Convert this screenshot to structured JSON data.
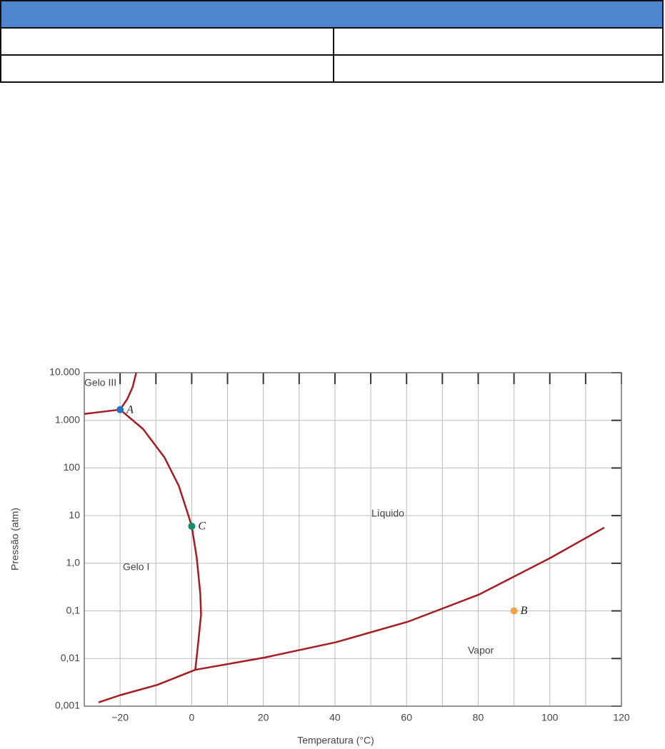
{
  "chart_data": {
    "type": "line",
    "x_label": "Temperatura (°C)",
    "y_label": "Pressão (atm)",
    "xlim": [
      -30,
      120
    ],
    "xticks": [
      {
        "value": -20,
        "label": "−20"
      },
      0,
      20,
      40,
      60,
      80,
      100,
      120
    ],
    "xminorticks": [
      -10,
      10,
      30,
      50,
      70,
      90,
      110
    ],
    "ylim": [
      0.001,
      10000
    ],
    "ylog": true,
    "yticks": [
      {
        "value": 0.001,
        "label": "0,001"
      },
      {
        "value": 0.01,
        "label": "0,01"
      },
      {
        "value": 0.1,
        "label": "0,1"
      },
      {
        "value": 1,
        "label": "1,0"
      },
      10,
      100,
      {
        "value": 1000,
        "label": "1.000"
      },
      {
        "value": 10000,
        "label": "10.000"
      }
    ],
    "grid": true,
    "annotations": [
      "Gelo III",
      "Gelo I",
      "Líquido",
      "Vapor"
    ],
    "series": [
      {
        "color": "#a51c24",
        "x": [
          -30,
          -20
        ],
        "values": [
          1365,
          1680
        ]
      },
      {
        "color": "#a51c24",
        "x": [
          -20,
          -18,
          -16.5,
          -15.5
        ],
        "values": [
          1680,
          2800,
          5000,
          10000
        ]
      },
      {
        "color": "#a51c24",
        "x": [
          -20,
          -13.6,
          -7.6,
          -3.6,
          -1,
          0,
          1.4,
          2.4,
          2.6,
          1.8,
          1
        ],
        "values": [
          1680,
          660,
          166,
          42,
          10.5,
          6,
          1.3,
          0.23,
          0.083,
          0.021,
          0.0058
        ]
      },
      {
        "color": "#a51c24",
        "x": [
          -26,
          -20,
          -9.6,
          1
        ],
        "values": [
          0.0012,
          0.0017,
          0.0028,
          0.0058
        ]
      },
      {
        "color": "#a51c24",
        "x": [
          1,
          20.4,
          40.3,
          60.3,
          80.2,
          100.2,
          115.2
        ],
        "values": [
          0.0058,
          0.0105,
          0.022,
          0.059,
          0.22,
          1.3,
          5.6
        ]
      }
    ],
    "points": [
      {
        "name": "A",
        "color": "#1f74c4",
        "x": [
          -20
        ],
        "values": [
          1680
        ]
      },
      {
        "name": "C",
        "color": "#12906a",
        "x": [
          0
        ],
        "values": [
          6
        ]
      },
      {
        "name": "B",
        "color": "#f5a04a",
        "x": [
          90
        ],
        "values": [
          0.1
        ]
      }
    ]
  }
}
